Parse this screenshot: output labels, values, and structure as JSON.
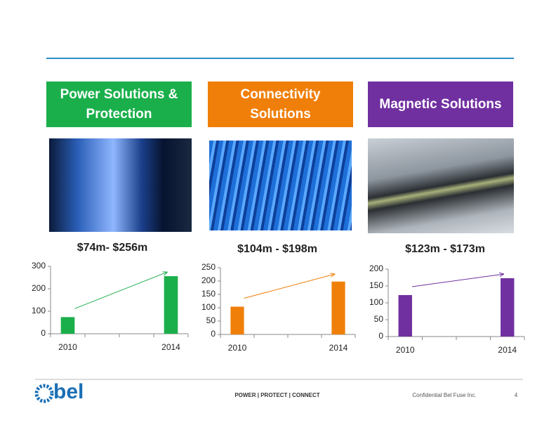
{
  "header_boxes": [
    {
      "label": "Power Solutions & Protection",
      "color": "#1aaf4b"
    },
    {
      "label": "Connectivity Solutions",
      "color": "#f07f09"
    },
    {
      "label": "Magnetic Solutions",
      "color": "#7030a0"
    }
  ],
  "chart_data": [
    {
      "type": "bar",
      "title": "$74m- $256m",
      "categories": [
        "2010",
        null,
        null,
        "2014"
      ],
      "values": [
        74,
        null,
        null,
        256
      ],
      "color": "#1aaf4b",
      "ylim": [
        0,
        300
      ],
      "yticks": [
        0,
        100,
        200,
        300
      ]
    },
    {
      "type": "bar",
      "title": "$104m - $198m",
      "categories": [
        "2010",
        null,
        null,
        "2014"
      ],
      "values": [
        104,
        null,
        null,
        198
      ],
      "color": "#f07f09",
      "ylim": [
        0,
        250
      ],
      "yticks": [
        0,
        50,
        100,
        150,
        200,
        250
      ]
    },
    {
      "type": "bar",
      "title": "$123m - $173m",
      "categories": [
        "2010",
        null,
        null,
        "2014"
      ],
      "values": [
        123,
        null,
        null,
        173
      ],
      "color": "#7030a0",
      "ylim": [
        0,
        200
      ],
      "yticks": [
        0,
        50,
        100,
        150,
        200
      ]
    }
  ],
  "footer": {
    "logo": "bel",
    "tagline": "POWER | PROTECT | CONNECT",
    "confidential": "Confidential Bel Fuse Inc.",
    "page": "4"
  }
}
